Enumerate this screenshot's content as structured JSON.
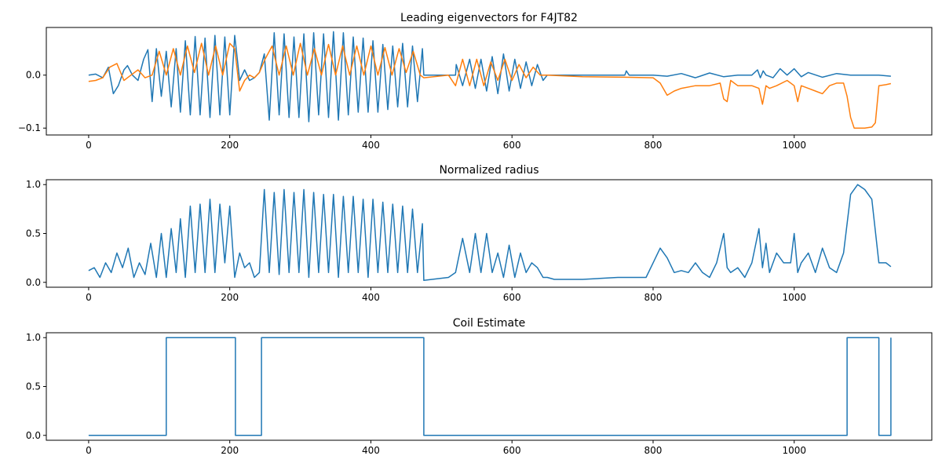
{
  "chart_data": [
    {
      "type": "line",
      "title": "Leading eigenvectors for F4JT82",
      "xlim": [
        -60,
        1195
      ],
      "ylim": [
        -0.113,
        0.09
      ],
      "xticks": [
        0,
        200,
        400,
        600,
        800,
        1000
      ],
      "yticks": [
        -0.1,
        0.0
      ],
      "ytick_labels": [
        "−0.1",
        "0.0"
      ],
      "series": [
        {
          "color": "#1f77b4",
          "x": [
            0,
            10,
            20,
            28,
            35,
            42,
            50,
            55,
            62,
            70,
            78,
            84,
            90,
            96,
            103,
            110,
            117,
            124,
            130,
            137,
            144,
            151,
            158,
            165,
            172,
            179,
            186,
            193,
            200,
            207,
            214,
            221,
            228,
            235,
            242,
            249,
            256,
            263,
            270,
            277,
            284,
            291,
            298,
            305,
            312,
            319,
            326,
            333,
            340,
            347,
            354,
            361,
            368,
            375,
            382,
            389,
            396,
            403,
            410,
            417,
            424,
            431,
            438,
            445,
            452,
            459,
            466,
            473,
            475,
            520,
            521,
            530,
            540,
            548,
            556,
            564,
            572,
            580,
            588,
            596,
            604,
            612,
            620,
            628,
            636,
            644,
            650,
            700,
            760,
            762,
            766,
            800,
            820,
            840,
            860,
            880,
            900,
            920,
            940,
            948,
            952,
            956,
            960,
            970,
            980,
            990,
            1000,
            1010,
            1020,
            1040,
            1060,
            1080,
            1100,
            1120,
            1137
          ],
          "y": [
            0.0,
            0.002,
            -0.005,
            0.015,
            -0.035,
            -0.02,
            0.01,
            0.018,
            0.0,
            -0.01,
            0.03,
            0.048,
            -0.05,
            0.05,
            -0.04,
            0.045,
            -0.06,
            0.05,
            -0.07,
            0.065,
            -0.075,
            0.073,
            -0.075,
            0.07,
            -0.08,
            0.075,
            -0.075,
            0.072,
            -0.075,
            0.075,
            -0.01,
            0.01,
            -0.01,
            -0.005,
            0.005,
            0.04,
            -0.085,
            0.08,
            -0.075,
            0.078,
            -0.08,
            0.072,
            -0.08,
            0.078,
            -0.088,
            0.08,
            -0.075,
            0.078,
            -0.08,
            0.082,
            -0.085,
            0.08,
            -0.075,
            0.072,
            -0.07,
            0.07,
            -0.07,
            0.065,
            -0.07,
            0.058,
            -0.065,
            0.055,
            -0.06,
            0.06,
            -0.06,
            0.055,
            -0.05,
            0.05,
            0.0,
            0.0,
            0.02,
            -0.02,
            0.03,
            -0.025,
            0.03,
            -0.03,
            0.035,
            -0.035,
            0.04,
            -0.03,
            0.03,
            -0.025,
            0.025,
            -0.02,
            0.02,
            -0.01,
            0.0,
            0.0,
            0.0,
            0.008,
            0.0,
            0.0,
            -0.002,
            0.003,
            -0.005,
            0.004,
            -0.003,
            0.0,
            0.0,
            0.01,
            -0.005,
            0.008,
            0.0,
            -0.005,
            0.012,
            0.0,
            0.012,
            -0.003,
            0.005,
            -0.004,
            0.003,
            0.0,
            0.0,
            0.0,
            -0.002
          ]
        },
        {
          "color": "#ff7f0e",
          "x": [
            0,
            10,
            20,
            30,
            40,
            50,
            60,
            70,
            80,
            90,
            100,
            110,
            120,
            130,
            140,
            150,
            160,
            170,
            180,
            190,
            200,
            207,
            214,
            221,
            228,
            235,
            242,
            250,
            260,
            270,
            280,
            290,
            300,
            310,
            320,
            330,
            340,
            350,
            360,
            370,
            380,
            390,
            400,
            410,
            420,
            430,
            440,
            450,
            460,
            470,
            475,
            510,
            520,
            530,
            540,
            550,
            560,
            570,
            580,
            590,
            600,
            610,
            620,
            630,
            640,
            650,
            700,
            760,
            800,
            810,
            820,
            830,
            840,
            860,
            880,
            895,
            900,
            905,
            910,
            920,
            940,
            950,
            955,
            960,
            965,
            975,
            990,
            1000,
            1005,
            1010,
            1020,
            1030,
            1040,
            1050,
            1060,
            1070,
            1075,
            1080,
            1085,
            1090,
            1100,
            1110,
            1115,
            1120,
            1130,
            1137
          ],
          "y": [
            -0.012,
            -0.01,
            -0.005,
            0.015,
            0.022,
            -0.01,
            0.0,
            0.01,
            -0.005,
            0.0,
            0.045,
            0.0,
            0.05,
            0.0,
            0.055,
            0.005,
            0.06,
            0.0,
            0.055,
            0.0,
            0.06,
            0.05,
            -0.03,
            -0.01,
            0.0,
            -0.005,
            0.005,
            0.03,
            0.055,
            0.0,
            0.055,
            0.0,
            0.06,
            0.0,
            0.05,
            0.0,
            0.058,
            0.0,
            0.055,
            0.0,
            0.055,
            0.0,
            0.055,
            0.0,
            0.052,
            0.0,
            0.05,
            0.005,
            0.045,
            0.0,
            -0.005,
            0.0,
            -0.02,
            0.03,
            -0.02,
            0.03,
            -0.02,
            0.025,
            -0.01,
            0.03,
            -0.01,
            0.02,
            -0.005,
            0.015,
            0.0,
            0.0,
            -0.003,
            -0.004,
            -0.005,
            -0.015,
            -0.038,
            -0.03,
            -0.025,
            -0.02,
            -0.02,
            -0.015,
            -0.045,
            -0.05,
            -0.01,
            -0.02,
            -0.02,
            -0.025,
            -0.055,
            -0.02,
            -0.025,
            -0.02,
            -0.01,
            -0.02,
            -0.05,
            -0.02,
            -0.025,
            -0.03,
            -0.035,
            -0.02,
            -0.015,
            -0.015,
            -0.04,
            -0.08,
            -0.1,
            -0.1,
            -0.1,
            -0.098,
            -0.09,
            -0.02,
            -0.018,
            -0.016
          ]
        }
      ]
    },
    {
      "type": "line",
      "title": "Normalized radius",
      "xlim": [
        -60,
        1195
      ],
      "ylim": [
        -0.05,
        1.05
      ],
      "xticks": [
        0,
        200,
        400,
        600,
        800,
        1000
      ],
      "yticks": [
        0.0,
        0.5,
        1.0
      ],
      "ytick_labels": [
        "0.0",
        "0.5",
        "1.0"
      ],
      "series": [
        {
          "color": "#1f77b4",
          "x": [
            0,
            8,
            16,
            24,
            32,
            40,
            48,
            56,
            64,
            72,
            80,
            88,
            96,
            103,
            110,
            117,
            124,
            130,
            137,
            144,
            151,
            158,
            165,
            172,
            179,
            186,
            193,
            200,
            207,
            214,
            221,
            228,
            235,
            242,
            249,
            256,
            263,
            270,
            277,
            284,
            291,
            298,
            305,
            312,
            319,
            326,
            333,
            340,
            347,
            354,
            361,
            368,
            375,
            382,
            389,
            396,
            403,
            410,
            417,
            424,
            431,
            438,
            445,
            452,
            459,
            466,
            473,
            475,
            510,
            520,
            530,
            540,
            548,
            556,
            564,
            572,
            580,
            588,
            596,
            604,
            612,
            620,
            628,
            636,
            644,
            650,
            660,
            700,
            750,
            790,
            800,
            810,
            820,
            830,
            840,
            850,
            860,
            870,
            880,
            890,
            900,
            905,
            910,
            920,
            930,
            940,
            950,
            955,
            960,
            965,
            975,
            985,
            995,
            1000,
            1005,
            1010,
            1020,
            1030,
            1040,
            1050,
            1060,
            1070,
            1080,
            1090,
            1100,
            1110,
            1120,
            1130,
            1137
          ],
          "y": [
            0.12,
            0.15,
            0.05,
            0.2,
            0.1,
            0.3,
            0.15,
            0.35,
            0.05,
            0.2,
            0.08,
            0.4,
            0.05,
            0.5,
            0.05,
            0.55,
            0.1,
            0.65,
            0.05,
            0.78,
            0.1,
            0.8,
            0.1,
            0.85,
            0.1,
            0.8,
            0.2,
            0.78,
            0.05,
            0.3,
            0.15,
            0.2,
            0.05,
            0.1,
            0.95,
            0.1,
            0.92,
            0.08,
            0.95,
            0.1,
            0.92,
            0.1,
            0.95,
            0.05,
            0.92,
            0.1,
            0.9,
            0.1,
            0.9,
            0.05,
            0.88,
            0.1,
            0.88,
            0.1,
            0.85,
            0.05,
            0.85,
            0.1,
            0.82,
            0.1,
            0.8,
            0.1,
            0.78,
            0.1,
            0.75,
            0.1,
            0.6,
            0.02,
            0.05,
            0.1,
            0.45,
            0.1,
            0.5,
            0.1,
            0.5,
            0.1,
            0.3,
            0.05,
            0.38,
            0.05,
            0.3,
            0.1,
            0.2,
            0.15,
            0.05,
            0.05,
            0.03,
            0.03,
            0.05,
            0.05,
            0.2,
            0.35,
            0.25,
            0.1,
            0.12,
            0.1,
            0.2,
            0.1,
            0.05,
            0.2,
            0.5,
            0.15,
            0.1,
            0.15,
            0.05,
            0.2,
            0.55,
            0.15,
            0.4,
            0.1,
            0.3,
            0.2,
            0.2,
            0.5,
            0.1,
            0.2,
            0.3,
            0.1,
            0.35,
            0.15,
            0.1,
            0.3,
            0.9,
            1.0,
            0.95,
            0.85,
            0.2,
            0.2,
            0.16
          ]
        }
      ]
    },
    {
      "type": "line",
      "title": "Coil Estimate",
      "xlim": [
        -60,
        1195
      ],
      "ylim": [
        -0.05,
        1.05
      ],
      "xticks": [
        0,
        200,
        400,
        600,
        800,
        1000
      ],
      "yticks": [
        0.0,
        0.5,
        1.0
      ],
      "ytick_labels": [
        "0.0",
        "0.5",
        "1.0"
      ],
      "series": [
        {
          "color": "#1f77b4",
          "x": [
            0,
            110,
            110,
            208,
            208,
            245,
            245,
            475,
            475,
            1075,
            1075,
            1120,
            1120,
            1137,
            1137
          ],
          "y": [
            0,
            0,
            1,
            1,
            0,
            0,
            1,
            1,
            0,
            0,
            1,
            1,
            0,
            0,
            1
          ]
        }
      ]
    }
  ]
}
